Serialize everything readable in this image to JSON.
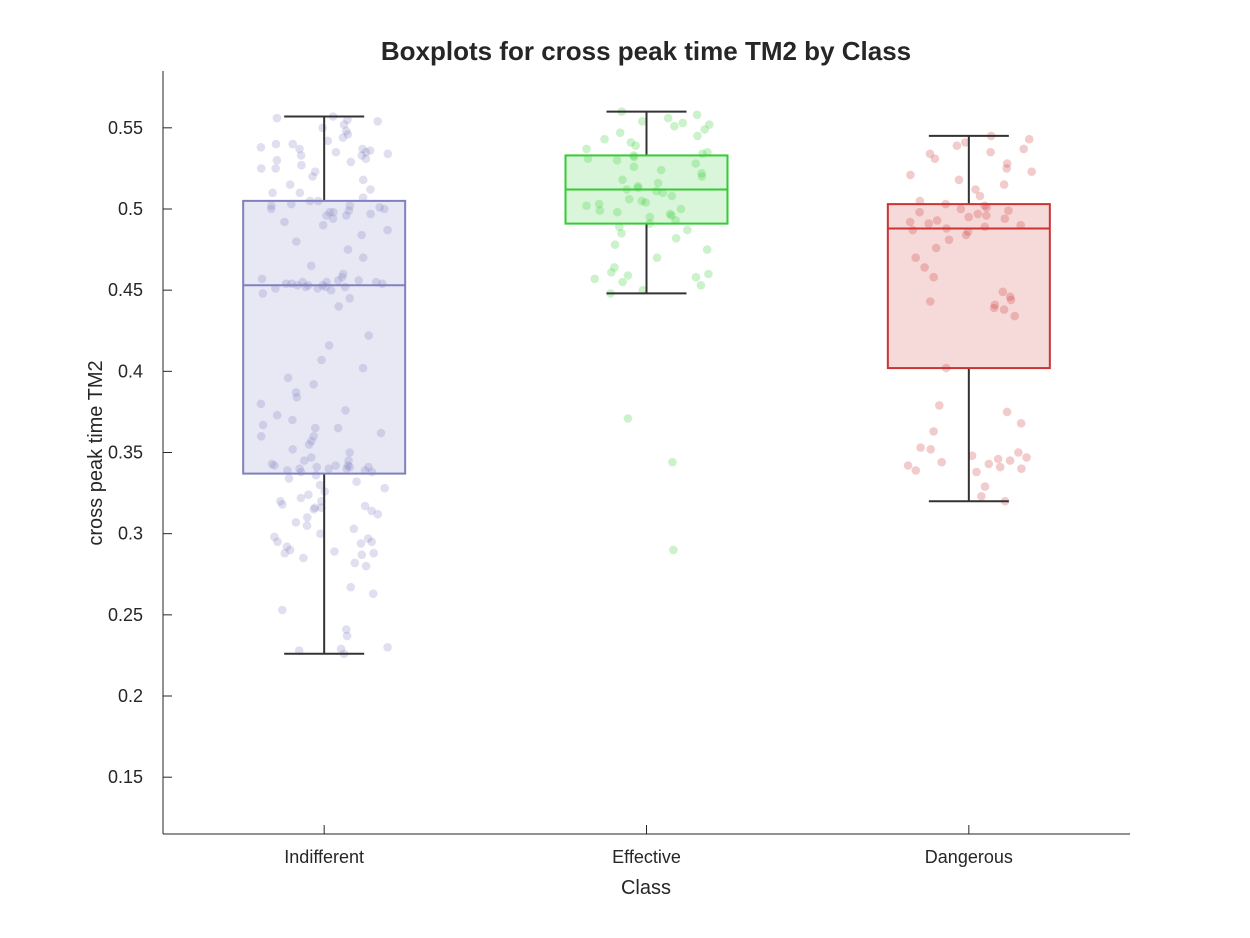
{
  "chart_data": {
    "type": "box",
    "title": "Boxplots for cross peak time TM2 by Class",
    "xlabel": "Class",
    "ylabel": "cross peak time TM2",
    "ylim": [
      0.115,
      0.585
    ],
    "yticks": [
      0.15,
      0.2,
      0.25,
      0.3,
      0.35,
      0.4,
      0.45,
      0.5,
      0.55
    ],
    "ytick_labels": [
      "0.15",
      "0.2",
      "0.25",
      "0.3",
      "0.35",
      "0.4",
      "0.45",
      "0.5",
      "0.55"
    ],
    "categories": [
      "Indifferent",
      "Effective",
      "Dangerous"
    ],
    "grid": false,
    "series": [
      {
        "category": "Indifferent",
        "color": "#8080c0",
        "box": {
          "whisker_low": 0.226,
          "q1": 0.337,
          "median": 0.453,
          "q3": 0.505,
          "whisker_high": 0.557
        },
        "points": [
          0.226,
          0.228,
          0.229,
          0.23,
          0.237,
          0.241,
          0.253,
          0.263,
          0.267,
          0.28,
          0.282,
          0.285,
          0.287,
          0.288,
          0.289,
          0.29,
          0.292,
          0.294,
          0.295,
          0.297,
          0.298,
          0.3,
          0.303,
          0.305,
          0.307,
          0.31,
          0.312,
          0.314,
          0.315,
          0.316,
          0.317,
          0.318,
          0.32,
          0.322,
          0.324,
          0.326,
          0.328,
          0.33,
          0.332,
          0.334,
          0.336,
          0.338,
          0.339,
          0.34,
          0.34,
          0.341,
          0.341,
          0.342,
          0.342,
          0.343,
          0.345,
          0.347,
          0.35,
          0.352,
          0.355,
          0.357,
          0.36,
          0.362,
          0.365,
          0.367,
          0.37,
          0.373,
          0.376,
          0.38,
          0.384,
          0.387,
          0.392,
          0.396,
          0.402,
          0.407,
          0.416,
          0.422,
          0.44,
          0.445,
          0.448,
          0.45,
          0.451,
          0.452,
          0.452,
          0.453,
          0.453,
          0.454,
          0.454,
          0.455,
          0.455,
          0.456,
          0.457,
          0.458,
          0.46,
          0.465,
          0.47,
          0.475,
          0.48,
          0.484,
          0.487,
          0.49,
          0.492,
          0.494,
          0.496,
          0.497,
          0.498,
          0.499,
          0.5,
          0.501,
          0.502,
          0.503,
          0.505,
          0.507,
          0.51,
          0.512,
          0.515,
          0.518,
          0.52,
          0.523,
          0.525,
          0.527,
          0.529,
          0.531,
          0.533,
          0.534,
          0.535,
          0.536,
          0.537,
          0.538,
          0.54,
          0.542,
          0.544,
          0.546,
          0.548,
          0.55,
          0.552,
          0.554,
          0.555,
          0.556,
          0.557,
          0.339,
          0.34,
          0.341,
          0.338,
          0.342,
          0.452,
          0.453,
          0.454,
          0.455,
          0.451,
          0.498,
          0.5,
          0.502,
          0.496,
          0.535,
          0.537,
          0.533,
          0.316,
          0.32,
          0.295,
          0.288,
          0.345,
          0.36,
          0.365,
          0.505,
          0.51,
          0.53,
          0.525,
          0.54,
          0.456
        ]
      },
      {
        "category": "Effective",
        "color": "#33cc33",
        "box": {
          "whisker_low": 0.448,
          "q1": 0.491,
          "median": 0.512,
          "q3": 0.533,
          "whisker_high": 0.56
        },
        "points": [
          0.29,
          0.344,
          0.371,
          0.448,
          0.45,
          0.453,
          0.455,
          0.457,
          0.458,
          0.459,
          0.46,
          0.461,
          0.464,
          0.47,
          0.475,
          0.478,
          0.482,
          0.485,
          0.487,
          0.489,
          0.491,
          0.493,
          0.495,
          0.496,
          0.497,
          0.498,
          0.499,
          0.5,
          0.502,
          0.503,
          0.504,
          0.505,
          0.506,
          0.508,
          0.51,
          0.511,
          0.512,
          0.513,
          0.514,
          0.516,
          0.518,
          0.52,
          0.522,
          0.524,
          0.526,
          0.528,
          0.53,
          0.531,
          0.532,
          0.533,
          0.534,
          0.535,
          0.537,
          0.539,
          0.541,
          0.543,
          0.545,
          0.547,
          0.549,
          0.551,
          0.552,
          0.553,
          0.554,
          0.556,
          0.558,
          0.56
        ]
      },
      {
        "category": "Dangerous",
        "color": "#cc3333",
        "box": {
          "whisker_low": 0.32,
          "q1": 0.402,
          "median": 0.488,
          "q3": 0.503,
          "whisker_high": 0.545
        },
        "points": [
          0.32,
          0.323,
          0.329,
          0.338,
          0.339,
          0.34,
          0.341,
          0.342,
          0.343,
          0.344,
          0.345,
          0.346,
          0.347,
          0.348,
          0.35,
          0.352,
          0.353,
          0.363,
          0.368,
          0.375,
          0.379,
          0.402,
          0.434,
          0.438,
          0.439,
          0.441,
          0.443,
          0.444,
          0.446,
          0.449,
          0.458,
          0.464,
          0.47,
          0.476,
          0.481,
          0.484,
          0.486,
          0.487,
          0.488,
          0.489,
          0.49,
          0.491,
          0.492,
          0.493,
          0.494,
          0.495,
          0.496,
          0.497,
          0.498,
          0.499,
          0.5,
          0.501,
          0.502,
          0.503,
          0.505,
          0.508,
          0.512,
          0.515,
          0.518,
          0.521,
          0.523,
          0.525,
          0.528,
          0.531,
          0.534,
          0.535,
          0.537,
          0.539,
          0.541,
          0.543,
          0.545
        ]
      }
    ]
  }
}
